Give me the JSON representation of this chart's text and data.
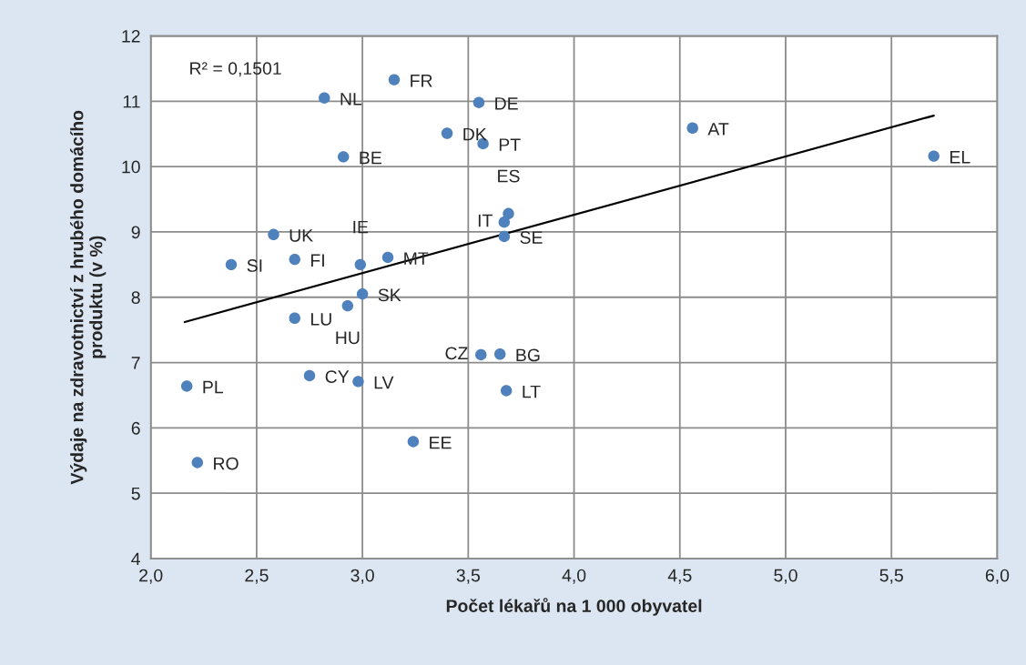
{
  "chart_data": {
    "type": "scatter",
    "xlabel": "Počet lékařů na 1 000 obyvatel",
    "ylabel": "Výdaje na zdravotnictví z hrubého domácího\nproduktu (v %)",
    "xlim": [
      2.0,
      6.0
    ],
    "ylim": [
      4,
      12
    ],
    "xticks": [
      {
        "value": 2.0,
        "label": "2,0"
      },
      {
        "value": 2.5,
        "label": "2,5"
      },
      {
        "value": 3.0,
        "label": "3,0"
      },
      {
        "value": 3.5,
        "label": "3,5"
      },
      {
        "value": 4.0,
        "label": "4,0"
      },
      {
        "value": 4.5,
        "label": "4,5"
      },
      {
        "value": 5.0,
        "label": "5,0"
      },
      {
        "value": 5.5,
        "label": "5,5"
      },
      {
        "value": 6.0,
        "label": "6,0"
      }
    ],
    "yticks": [
      4,
      5,
      6,
      7,
      8,
      9,
      10,
      11,
      12
    ],
    "grid": true,
    "legend": false,
    "series": [
      {
        "color": "#4f81bd",
        "marker": "circle",
        "x": [
          3.15,
          2.82,
          3.55,
          3.4,
          3.57,
          2.91,
          4.56,
          5.7,
          3.69,
          3.67,
          3.67,
          2.58,
          2.99,
          3.12,
          2.38,
          2.68,
          3.0,
          2.93,
          2.68,
          3.56,
          3.65,
          2.75,
          2.98,
          2.17,
          3.68,
          3.24,
          2.22
        ],
        "values": [
          11.33,
          11.05,
          10.98,
          10.51,
          10.35,
          10.15,
          10.59,
          10.16,
          9.28,
          9.15,
          8.93,
          8.96,
          8.5,
          8.61,
          8.5,
          8.58,
          8.05,
          7.87,
          7.68,
          7.12,
          7.13,
          6.8,
          6.71,
          6.64,
          6.57,
          5.79,
          5.47
        ]
      },
      {
        "type": "line",
        "color": "#000000",
        "line_style": "solid",
        "marker": "none",
        "x": [
          2.16,
          5.7
        ],
        "values": [
          7.62,
          10.78
        ]
      }
    ],
    "annotations": [
      "R² = 0,1501",
      {
        "text": "FR",
        "x": 3.15,
        "y": 11.33
      },
      {
        "text": "NL",
        "x": 2.82,
        "y": 11.05
      },
      {
        "text": "DE",
        "x": 3.55,
        "y": 10.98
      },
      {
        "text": "DK",
        "x": 3.4,
        "y": 10.51
      },
      {
        "text": "PT",
        "x": 3.57,
        "y": 10.35
      },
      {
        "text": "BE",
        "x": 2.91,
        "y": 10.15
      },
      {
        "text": "AT",
        "x": 4.56,
        "y": 10.59
      },
      {
        "text": "EL",
        "x": 5.7,
        "y": 10.16
      },
      {
        "text": "ES",
        "x": 3.69,
        "y": 9.28
      },
      {
        "text": "IT",
        "x": 3.67,
        "y": 9.15
      },
      {
        "text": "SE",
        "x": 3.67,
        "y": 8.93
      },
      {
        "text": "UK",
        "x": 2.58,
        "y": 8.96
      },
      {
        "text": "IE",
        "x": 2.99,
        "y": 8.5
      },
      {
        "text": "MT",
        "x": 3.12,
        "y": 8.61
      },
      {
        "text": "SI",
        "x": 2.38,
        "y": 8.5
      },
      {
        "text": "FI",
        "x": 2.68,
        "y": 8.58
      },
      {
        "text": "SK",
        "x": 3.0,
        "y": 8.05
      },
      {
        "text": "HU",
        "x": 2.93,
        "y": 7.87
      },
      {
        "text": "LU",
        "x": 2.68,
        "y": 7.68
      },
      {
        "text": "CZ",
        "x": 3.56,
        "y": 7.12
      },
      {
        "text": "BG",
        "x": 3.65,
        "y": 7.13
      },
      {
        "text": "CY",
        "x": 2.75,
        "y": 6.8
      },
      {
        "text": "LV",
        "x": 2.98,
        "y": 6.71
      },
      {
        "text": "PL",
        "x": 2.17,
        "y": 6.64
      },
      {
        "text": "LT",
        "x": 3.68,
        "y": 6.57
      },
      {
        "text": "EE",
        "x": 3.24,
        "y": 5.79
      },
      {
        "text": "RO",
        "x": 2.22,
        "y": 5.47
      }
    ]
  }
}
